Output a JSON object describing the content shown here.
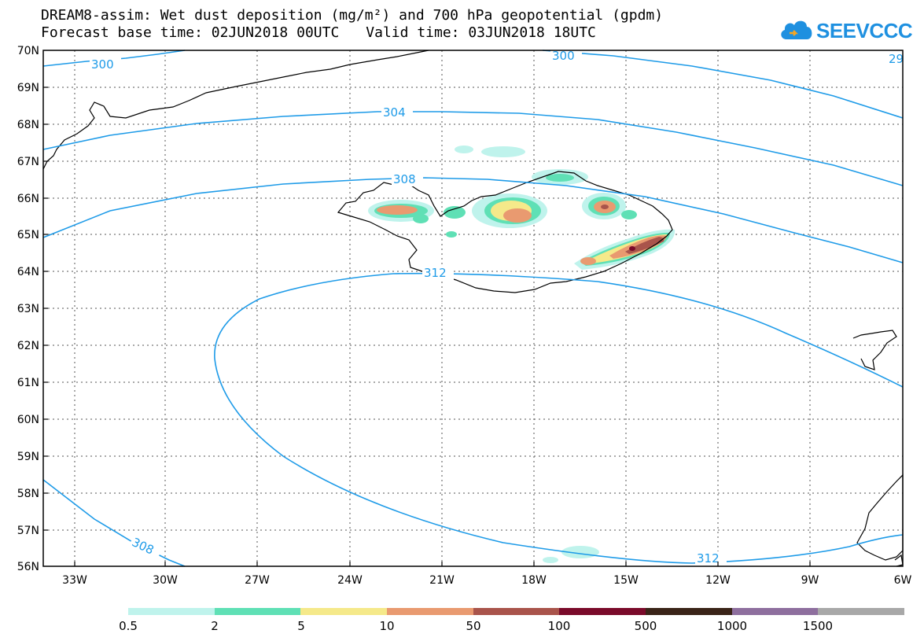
{
  "header": {
    "title_line1": "DREAM8-assim: Wet dust deposition (mg/m²) and 700 hPa geopotential (gpdm)",
    "forecast_label": "Forecast base time: 02JUN2018 00UTC",
    "valid_label": "Valid time: 03JUN2018 18UTC"
  },
  "logo": {
    "text": "SEEVCCC",
    "icon": "cloud-icon",
    "color": "#1e90e0"
  },
  "map": {
    "lat_labels": [
      "70N",
      "69N",
      "68N",
      "67N",
      "66N",
      "65N",
      "64N",
      "63N",
      "62N",
      "61N",
      "60N",
      "59N",
      "58N",
      "57N",
      "56N"
    ],
    "lon_labels": [
      "33W",
      "30W",
      "27W",
      "24W",
      "21W",
      "18W",
      "15W",
      "12W",
      "9W",
      "6W"
    ],
    "contour_color": "#1e9be8",
    "contour_labels": [
      "300",
      "300",
      "29",
      "304",
      "308",
      "312",
      "312",
      "308"
    ]
  },
  "legend": {
    "colors": [
      "#bff3ec",
      "#5fe0b5",
      "#f5e98a",
      "#e99a70",
      "#a9544b",
      "#7a0a2a",
      "#3a2418",
      "#8e6f9e",
      "#a8a8a8"
    ],
    "labels": [
      "0.5",
      "2",
      "5",
      "10",
      "50",
      "100",
      "500",
      "1000",
      "1500"
    ]
  }
}
